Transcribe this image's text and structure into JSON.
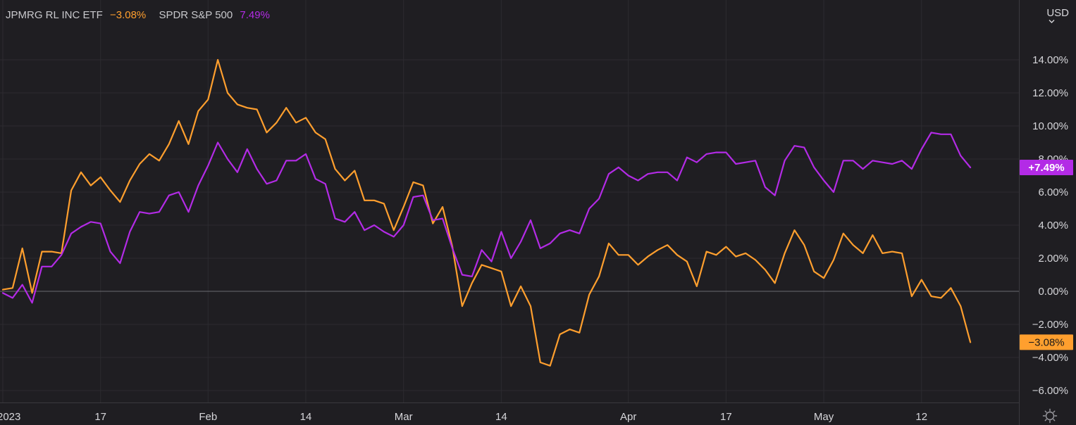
{
  "legend": {
    "series1_name": "JPMRG RL INC ETF",
    "series1_value": "−3.08%",
    "series2_name": "SPDR S&P 500",
    "series2_value": "7.49%"
  },
  "currency_label": "USD",
  "colors": {
    "background": "#1f1e22",
    "grid": "#2c2b30",
    "zero_line": "#6a6a70",
    "text": "#d6d6da",
    "jpmrg": "#ff9f2e",
    "spdr": "#b32be6"
  },
  "chart_data": {
    "type": "line",
    "xlabel": "",
    "ylabel": "",
    "ylim": [
      -6.8,
      16.5
    ],
    "grid": true,
    "legend_position": "top-left",
    "x_tick_labels": [
      "2023",
      "17",
      "Feb",
      "14",
      "Mar",
      "14",
      "Apr",
      "17",
      "May",
      "12"
    ],
    "x_tick_index": [
      0,
      10,
      21,
      31,
      41,
      51,
      64,
      74,
      84,
      94
    ],
    "y_ticks": [
      14,
      12,
      10,
      8,
      6,
      4,
      2,
      0,
      -2,
      -4,
      -6
    ],
    "y_tick_labels": [
      "14.00%",
      "12.00%",
      "10.00%",
      "8.00%",
      "6.00%",
      "4.00%",
      "2.00%",
      "0.00%",
      "−2.00%",
      "−4.00%",
      "−6.00%"
    ],
    "last_value_labels": [
      "−3.08%",
      "+7.49%"
    ],
    "series": [
      {
        "name": "JPMRG RL INC ETF",
        "color": "#ff9f2e",
        "values": [
          0.1,
          0.2,
          2.6,
          -0.1,
          2.4,
          2.4,
          2.3,
          6.1,
          7.2,
          6.4,
          6.9,
          6.1,
          5.4,
          6.7,
          7.7,
          8.3,
          7.9,
          8.9,
          10.3,
          8.9,
          10.9,
          11.6,
          14.0,
          12.0,
          11.3,
          11.1,
          11.0,
          9.6,
          10.2,
          11.1,
          10.2,
          10.5,
          9.6,
          9.2,
          7.4,
          6.7,
          7.3,
          5.5,
          5.5,
          5.3,
          3.7,
          5.1,
          6.6,
          6.4,
          4.1,
          5.1,
          2.7,
          -0.9,
          0.5,
          1.6,
          1.4,
          1.2,
          -0.9,
          0.3,
          -0.9,
          -4.3,
          -4.5,
          -2.6,
          -2.3,
          -2.5,
          -0.2,
          0.9,
          2.9,
          2.2,
          2.2,
          1.6,
          2.1,
          2.5,
          2.8,
          2.2,
          1.8,
          0.3,
          2.4,
          2.2,
          2.7,
          2.1,
          2.3,
          1.9,
          1.3,
          0.5,
          2.3,
          3.7,
          2.8,
          1.2,
          0.8,
          1.9,
          3.5,
          2.8,
          2.3,
          3.4,
          2.3,
          2.4,
          2.3,
          -0.3,
          0.7,
          -0.3,
          -0.4,
          0.2,
          -0.9,
          -3.08
        ]
      },
      {
        "name": "SPDR S&P 500",
        "color": "#b32be6",
        "values": [
          -0.1,
          -0.4,
          0.4,
          -0.7,
          1.5,
          1.5,
          2.2,
          3.5,
          3.9,
          4.2,
          4.1,
          2.4,
          1.7,
          3.6,
          4.8,
          4.7,
          4.8,
          5.8,
          6.0,
          4.8,
          6.4,
          7.6,
          9.0,
          8.0,
          7.2,
          8.6,
          7.4,
          6.5,
          6.7,
          7.9,
          7.9,
          8.3,
          6.8,
          6.5,
          4.4,
          4.2,
          4.8,
          3.7,
          4.0,
          3.6,
          3.3,
          4.0,
          5.7,
          5.8,
          4.3,
          4.4,
          2.6,
          1.0,
          0.9,
          2.5,
          1.8,
          3.6,
          2.0,
          3.0,
          4.3,
          2.6,
          2.9,
          3.5,
          3.7,
          3.5,
          5.0,
          5.6,
          7.1,
          7.5,
          7.0,
          6.7,
          7.1,
          7.2,
          7.2,
          6.7,
          8.1,
          7.8,
          8.3,
          8.4,
          8.4,
          7.7,
          7.8,
          7.9,
          6.3,
          5.8,
          7.9,
          8.8,
          8.7,
          7.5,
          6.7,
          6.0,
          7.9,
          7.9,
          7.4,
          7.9,
          7.8,
          7.7,
          7.9,
          7.4,
          8.6,
          9.6,
          9.5,
          9.5,
          8.2,
          7.49
        ]
      }
    ]
  }
}
